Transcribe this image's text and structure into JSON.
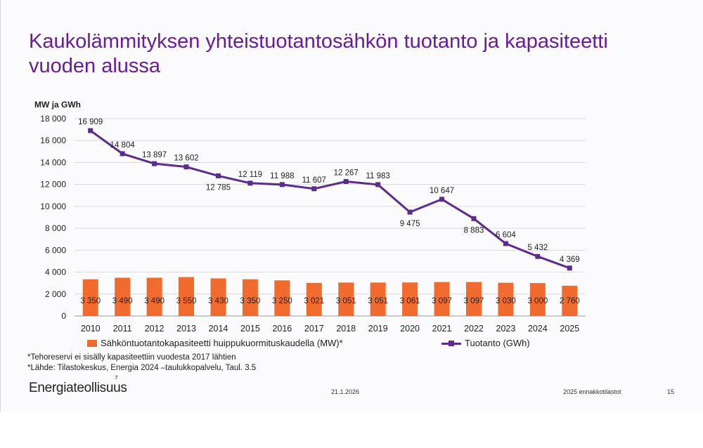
{
  "title": "Kaukolämmityksen yhteistuotantosähkön tuotanto ja kapasiteetti vuoden alussa",
  "colors": {
    "title": "#6a1b9a",
    "bar": "#f26b2e",
    "line": "#5b2c8c"
  },
  "chart_data": {
    "type": "bar+line",
    "ylabel": "MW ja GWh",
    "ylim": [
      0,
      18000
    ],
    "yticks": [
      0,
      2000,
      4000,
      6000,
      8000,
      10000,
      12000,
      14000,
      16000,
      18000
    ],
    "ytick_labels": [
      "0",
      "2 000",
      "4 000",
      "6 000",
      "8 000",
      "10 000",
      "12 000",
      "14 000",
      "16 000",
      "18 000"
    ],
    "categories": [
      "2010",
      "2011",
      "2012",
      "2013",
      "2014",
      "2015",
      "2016",
      "2017",
      "2018",
      "2019",
      "2020",
      "2021",
      "2022",
      "2023",
      "2024",
      "2025"
    ],
    "series": [
      {
        "name": "Sähköntuotantokapasiteetti huippukuormituskaudella (MW)*",
        "type": "bar",
        "values": [
          3350,
          3490,
          3490,
          3550,
          3430,
          3350,
          3250,
          3021,
          3051,
          3051,
          3061,
          3097,
          3097,
          3030,
          3000,
          2760
        ],
        "labels": [
          "3 350",
          "3 490",
          "3 490",
          "3 550",
          "3 430",
          "3 350",
          "3 250",
          "3 021",
          "3 051",
          "3 051",
          "3 061",
          "3 097",
          "3 097",
          "3 030",
          "3 000",
          "2 760"
        ]
      },
      {
        "name": "Tuotanto (GWh)",
        "type": "line",
        "values": [
          16909,
          14804,
          13897,
          13602,
          12785,
          12119,
          11988,
          11607,
          12267,
          11983,
          9475,
          10647,
          8883,
          6604,
          5432,
          4369
        ],
        "labels": [
          "16 909",
          "14 804",
          "13 897",
          "13 602",
          "12 785",
          "12 119",
          "11 988",
          "11 607",
          "12 267",
          "11 983",
          "9 475",
          "10 647",
          "8 883",
          "6 604",
          "5 432",
          "4 369"
        ],
        "label_pos": [
          "above",
          "above",
          "above",
          "above",
          "below",
          "above",
          "above",
          "above",
          "above",
          "above",
          "below",
          "above",
          "below",
          "above",
          "above",
          "above"
        ]
      }
    ]
  },
  "notes": [
    "*Tehoreservi ei sisälly kapasiteettiin vuodesta 2017 lähtien",
    "*Lähde: Tilastokeskus, Energia 2024 –taulukkopalvelu, Taul. 3.5"
  ],
  "footer": {
    "logo": "Energiateollisuus",
    "logo_mark": "⁷",
    "date": "21.1.2026",
    "subtitle": "2025 ennakkotilastot",
    "page": "15"
  }
}
